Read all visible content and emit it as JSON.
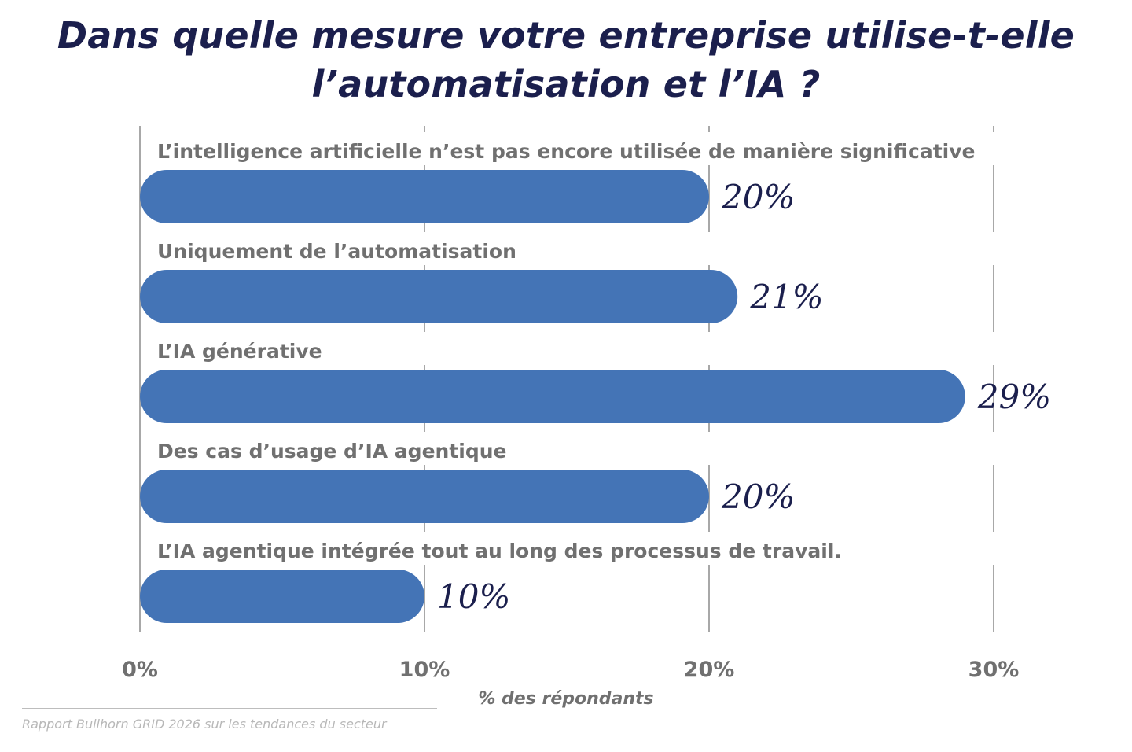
{
  "title_lines": [
    "Dans quelle mesure votre entreprise utilise-t-elle",
    "l’automatisation et l’IA ?"
  ],
  "chart_data": {
    "type": "bar",
    "orientation": "horizontal",
    "title": "Dans quelle mesure votre entreprise utilise-t-elle l’automatisation et l’IA ?",
    "categories": [
      "L’intelligence artificielle n’est pas encore utilisée de manière significative",
      "Uniquement de l’automatisation",
      "L’IA générative",
      "Des cas d’usage d’IA agentique",
      "L’IA agentique intégrée tout au long des processus de travail."
    ],
    "values": [
      20,
      21,
      29,
      20,
      10
    ],
    "value_labels": [
      "20%",
      "21%",
      "29%",
      "20%",
      "10%"
    ],
    "xlabel": "% des répondants",
    "xlim": [
      0,
      30
    ],
    "x_ticks": [
      0,
      10,
      20,
      30
    ],
    "x_tick_labels": [
      "0%",
      "10%",
      "20%",
      "30%"
    ],
    "grid": true,
    "bar_color": "#4474b6",
    "label_color": "#707070",
    "value_color": "#1b1f4d"
  },
  "source": "Rapport Bullhorn GRID 2026 sur les tendances du secteur"
}
